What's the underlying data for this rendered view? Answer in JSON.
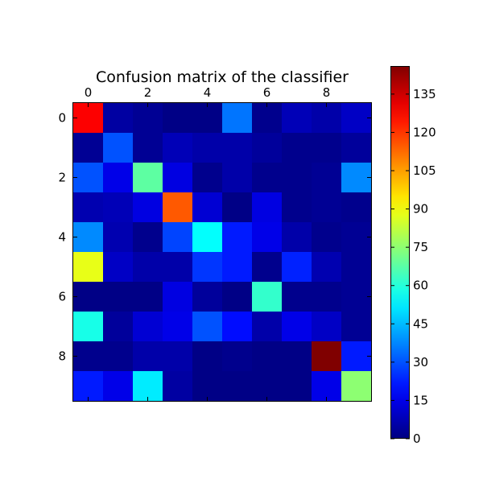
{
  "chart_data": {
    "type": "heatmap",
    "title": "Confusion matrix of the classifier",
    "colormap": "jet",
    "vmin": 0,
    "vmax": 146,
    "x_ticks": [
      "0",
      "2",
      "4",
      "6",
      "8"
    ],
    "y_ticks": [
      "0",
      "2",
      "4",
      "6",
      "8"
    ],
    "tick_positions": [
      0,
      2,
      4,
      6,
      8
    ],
    "colorbar_ticks": [
      "0",
      "15",
      "30",
      "45",
      "60",
      "75",
      "90",
      "105",
      "120",
      "135"
    ],
    "colorbar_values": [
      0,
      15,
      30,
      45,
      60,
      75,
      90,
      105,
      120,
      135
    ],
    "matrix": [
      [
        128,
        5,
        3,
        1,
        1,
        35,
        2,
        8,
        6,
        10
      ],
      [
        3,
        30,
        3,
        8,
        6,
        6,
        4,
        2,
        2,
        4
      ],
      [
        30,
        15,
        68,
        14,
        2,
        6,
        2,
        2,
        3,
        38
      ],
      [
        7,
        8,
        14,
        115,
        12,
        1,
        14,
        2,
        3,
        2
      ],
      [
        38,
        7,
        2,
        28,
        55,
        22,
        15,
        6,
        2,
        3
      ],
      [
        88,
        10,
        6,
        6,
        26,
        22,
        2,
        23,
        7,
        3
      ],
      [
        1,
        1,
        1,
        14,
        4,
        1,
        62,
        2,
        2,
        3
      ],
      [
        58,
        4,
        12,
        15,
        30,
        20,
        6,
        15,
        10,
        3
      ],
      [
        2,
        2,
        6,
        6,
        1,
        2,
        1,
        1,
        146,
        22
      ],
      [
        22,
        15,
        52,
        5,
        1,
        1,
        1,
        1,
        15,
        75
      ]
    ]
  }
}
